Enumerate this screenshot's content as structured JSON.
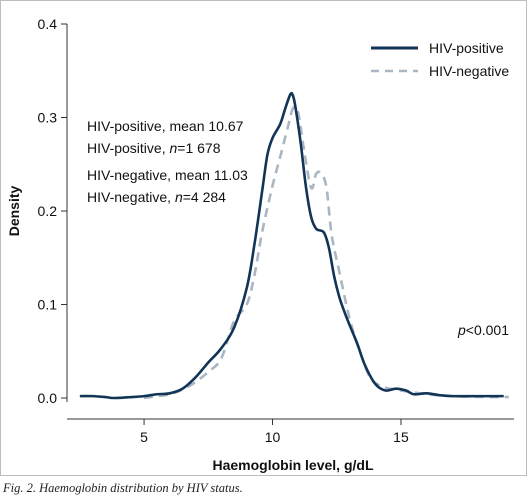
{
  "caption": "Fig. 2. Haemoglobin distribution by HIV status.",
  "colors": {
    "hiv_positive": "#123456",
    "hiv_negative": "#a9b6c3",
    "axis": "#333333"
  },
  "chart_data": {
    "type": "line",
    "xlabel": "Haemoglobin level, g/dL",
    "ylabel": "Density",
    "xlim": [
      2,
      19.4
    ],
    "ylim": [
      0,
      0.4
    ],
    "xticks": [
      5,
      10,
      15
    ],
    "yticks": [
      0.0,
      0.1,
      0.2,
      0.3,
      0.4
    ],
    "ytick_labels": [
      "0.0",
      "0.1",
      "0.2",
      "0.3",
      "0.4"
    ],
    "grid": false,
    "legend_position": "top-right",
    "series": [
      {
        "name": "HIV-positive",
        "style": "solid",
        "points": [
          [
            2.5,
            0.002
          ],
          [
            3.0,
            0.002
          ],
          [
            3.5,
            0.001
          ],
          [
            3.8,
            0.0
          ],
          [
            4.5,
            0.001
          ],
          [
            5.0,
            0.002
          ],
          [
            5.5,
            0.004
          ],
          [
            6.0,
            0.005
          ],
          [
            6.5,
            0.01
          ],
          [
            7.0,
            0.022
          ],
          [
            7.5,
            0.038
          ],
          [
            8.0,
            0.053
          ],
          [
            8.5,
            0.075
          ],
          [
            9.0,
            0.118
          ],
          [
            9.3,
            0.165
          ],
          [
            9.6,
            0.222
          ],
          [
            9.8,
            0.26
          ],
          [
            10.0,
            0.278
          ],
          [
            10.3,
            0.293
          ],
          [
            10.5,
            0.31
          ],
          [
            10.7,
            0.325
          ],
          [
            10.8,
            0.323
          ],
          [
            10.9,
            0.31
          ],
          [
            11.1,
            0.272
          ],
          [
            11.3,
            0.226
          ],
          [
            11.5,
            0.194
          ],
          [
            11.7,
            0.181
          ],
          [
            12.0,
            0.177
          ],
          [
            12.2,
            0.16
          ],
          [
            12.4,
            0.13
          ],
          [
            12.6,
            0.108
          ],
          [
            12.8,
            0.092
          ],
          [
            13.0,
            0.078
          ],
          [
            13.3,
            0.058
          ],
          [
            13.6,
            0.035
          ],
          [
            14.0,
            0.015
          ],
          [
            14.4,
            0.008
          ],
          [
            14.8,
            0.01
          ],
          [
            15.2,
            0.008
          ],
          [
            15.5,
            0.004
          ],
          [
            16.0,
            0.005
          ],
          [
            16.5,
            0.003
          ],
          [
            17.0,
            0.002
          ],
          [
            18.0,
            0.002
          ],
          [
            19.0,
            0.002
          ]
        ]
      },
      {
        "name": "HIV-negative",
        "style": "dashed",
        "points": [
          [
            5.0,
            0.0
          ],
          [
            5.5,
            0.002
          ],
          [
            6.0,
            0.004
          ],
          [
            6.5,
            0.009
          ],
          [
            7.0,
            0.017
          ],
          [
            7.5,
            0.028
          ],
          [
            8.0,
            0.042
          ],
          [
            8.5,
            0.082
          ],
          [
            9.0,
            0.1
          ],
          [
            9.3,
            0.132
          ],
          [
            9.6,
            0.178
          ],
          [
            10.0,
            0.227
          ],
          [
            10.3,
            0.258
          ],
          [
            10.6,
            0.29
          ],
          [
            10.8,
            0.31
          ],
          [
            11.0,
            0.305
          ],
          [
            11.2,
            0.27
          ],
          [
            11.5,
            0.225
          ],
          [
            11.7,
            0.24
          ],
          [
            11.9,
            0.24
          ],
          [
            12.1,
            0.225
          ],
          [
            12.3,
            0.175
          ],
          [
            12.6,
            0.135
          ],
          [
            13.0,
            0.085
          ],
          [
            13.4,
            0.05
          ],
          [
            13.8,
            0.022
          ],
          [
            14.3,
            0.012
          ],
          [
            15.0,
            0.008
          ],
          [
            15.5,
            0.006
          ],
          [
            16.0,
            0.004
          ],
          [
            17.0,
            0.002
          ],
          [
            18.5,
            0.001
          ],
          [
            19.2,
            0.001
          ]
        ]
      }
    ],
    "annotations": [
      {
        "id": "pos-mean",
        "text": "HIV-positive, mean 10.67"
      },
      {
        "id": "pos-n",
        "text": "HIV-positive, n=1 678",
        "prefix": "HIV-positive, ",
        "italic": "n",
        "suffix": "=1 678"
      },
      {
        "id": "neg-mean",
        "text": "HIV-negative, mean 11.03"
      },
      {
        "id": "neg-n",
        "text": "HIV-negative, n=4 284",
        "prefix": "HIV-negative, ",
        "italic": "n",
        "suffix": "=4 284"
      },
      {
        "id": "pvalue",
        "text": "p<0.001",
        "italic": "p",
        "suffix": "<0.001"
      }
    ]
  }
}
